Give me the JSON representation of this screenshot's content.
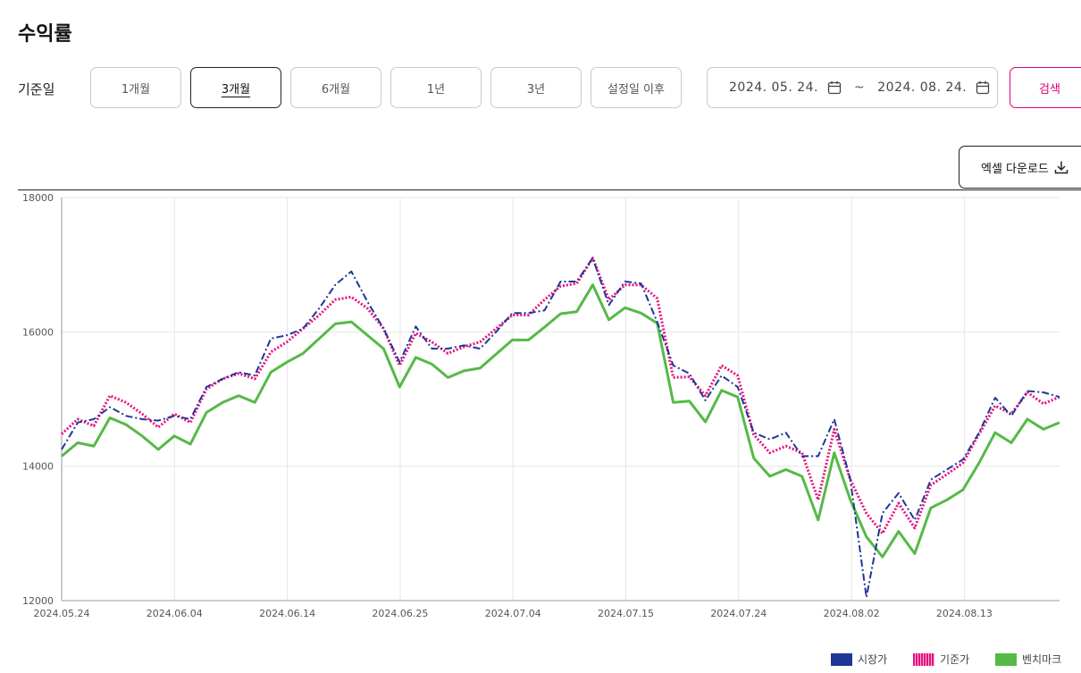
{
  "page": {
    "title": "수익률"
  },
  "filter": {
    "label": "기준일",
    "periods": [
      "1개월",
      "3개월",
      "6개월",
      "1년",
      "3년",
      "설정일 이후"
    ],
    "active_period": "3개월",
    "start_date": "2024. 05. 24.",
    "end_date": "2024. 08. 24.",
    "separator": "~",
    "search_label": "검색"
  },
  "excel_label": "엑셀 다운로드",
  "colors": {
    "market": "#1e3796",
    "base": "#e8117f",
    "bench": "#56b947",
    "accent": "#e0007a"
  },
  "chart_data": {
    "type": "line",
    "ylim": [
      12000,
      18000
    ],
    "yticks": [
      12000,
      14000,
      16000,
      18000
    ],
    "xticks": [
      "2024.05.24",
      "2024.06.04",
      "2024.06.14",
      "2024.06.25",
      "2024.07.04",
      "2024.07.15",
      "2024.07.24",
      "2024.08.02",
      "2024.08.13"
    ],
    "grid": true,
    "legend_position": "bottom-right",
    "series": [
      {
        "name": "시장가",
        "key": "market",
        "style": "dashdot",
        "values": [
          14250,
          14650,
          14700,
          14880,
          14750,
          14700,
          14680,
          14750,
          14700,
          15180,
          15300,
          15400,
          15350,
          15900,
          15950,
          16050,
          16350,
          16700,
          16900,
          16450,
          16050,
          15550,
          16080,
          15750,
          15750,
          15800,
          15750,
          16000,
          16280,
          16280,
          16320,
          16750,
          16750,
          17100,
          16400,
          16750,
          16720,
          16150,
          15500,
          15380,
          14980,
          15350,
          15180,
          14500,
          14400,
          14500,
          14150,
          14150,
          14700,
          13800,
          12050,
          13300,
          13600,
          13200,
          13800,
          13950,
          14100,
          14500,
          15020,
          14750,
          15120,
          15100,
          15030
        ]
      },
      {
        "name": "기준가",
        "key": "base",
        "style": "dotted",
        "values": [
          14480,
          14700,
          14600,
          15050,
          14950,
          14780,
          14580,
          14780,
          14650,
          15150,
          15300,
          15380,
          15300,
          15700,
          15850,
          16050,
          16250,
          16480,
          16520,
          16350,
          16050,
          15500,
          15980,
          15850,
          15680,
          15780,
          15850,
          16050,
          16250,
          16250,
          16480,
          16680,
          16720,
          17100,
          16480,
          16700,
          16700,
          16500,
          15320,
          15330,
          15050,
          15500,
          15350,
          14470,
          14200,
          14300,
          14200,
          13500,
          14550,
          13800,
          13300,
          13000,
          13450,
          13080,
          13720,
          13880,
          14050,
          14480,
          14900,
          14780,
          15100,
          14930,
          15030
        ]
      },
      {
        "name": "벤치마크",
        "key": "bench",
        "style": "solid",
        "values": [
          14150,
          14350,
          14300,
          14720,
          14620,
          14450,
          14250,
          14450,
          14330,
          14800,
          14950,
          15050,
          14950,
          15400,
          15550,
          15680,
          15900,
          16120,
          16150,
          15950,
          15750,
          15180,
          15620,
          15520,
          15320,
          15420,
          15460,
          15670,
          15880,
          15880,
          16070,
          16270,
          16300,
          16700,
          16180,
          16360,
          16280,
          16130,
          14950,
          14970,
          14660,
          15130,
          15030,
          14120,
          13850,
          13950,
          13850,
          13200,
          14200,
          13500,
          12950,
          12650,
          13030,
          12700,
          13380,
          13500,
          13650,
          14050,
          14500,
          14350,
          14700,
          14550,
          14650
        ]
      }
    ]
  }
}
